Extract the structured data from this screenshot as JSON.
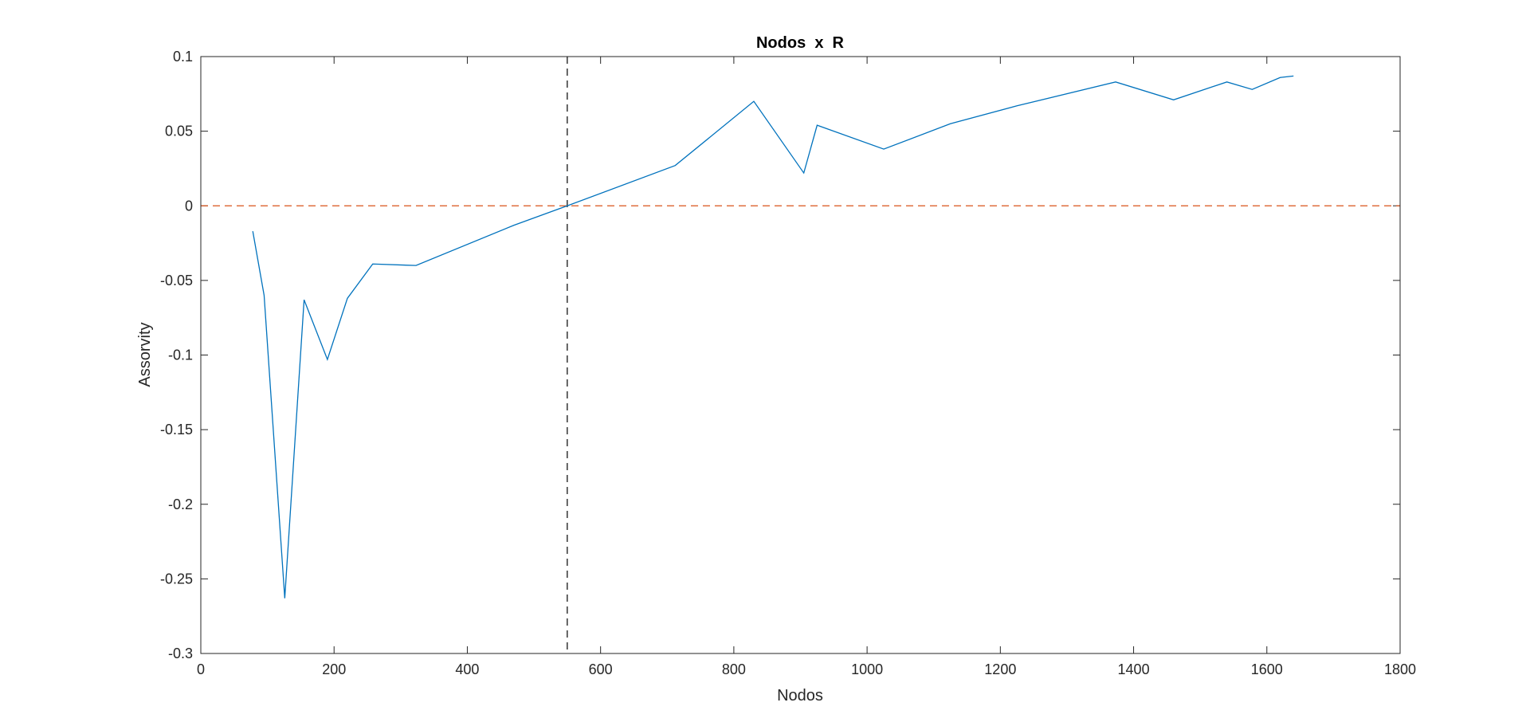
{
  "chart_data": {
    "type": "line",
    "title": "Nodos  x  R",
    "xlabel": "Nodos",
    "ylabel": "Assorvity",
    "xlim": [
      0,
      1800
    ],
    "ylim": [
      -0.3,
      0.1
    ],
    "xticks": [
      0,
      200,
      400,
      600,
      800,
      1000,
      1200,
      1400,
      1600,
      1800
    ],
    "xtick_labels": [
      "0",
      "200",
      "400",
      "600",
      "800",
      "1000",
      "1200",
      "1400",
      "1600",
      "1800"
    ],
    "yticks": [
      0.1,
      0.05,
      0,
      -0.05,
      -0.1,
      -0.15,
      -0.2,
      -0.25,
      -0.3
    ],
    "ytick_labels": [
      "0.1",
      "0.05",
      "0",
      "-0.05",
      "-0.1",
      "-0.15",
      "-0.2",
      "-0.25",
      "-0.3"
    ],
    "grid": false,
    "series": [
      {
        "color": "#0072BD",
        "x": [
          78,
          95,
          126,
          155,
          190,
          220,
          258,
          323,
          470,
          550,
          712,
          830,
          905,
          925,
          1025,
          1125,
          1225,
          1373,
          1460,
          1540,
          1578,
          1620,
          1640
        ],
        "y": [
          -0.017,
          -0.06,
          -0.263,
          -0.063,
          -0.103,
          -0.062,
          -0.039,
          -0.04,
          -0.013,
          0.0,
          0.027,
          0.07,
          0.022,
          0.054,
          0.038,
          0.055,
          0.067,
          0.083,
          0.071,
          0.083,
          0.078,
          0.086,
          0.087
        ]
      }
    ],
    "reference_lines": [
      {
        "orientation": "horizontal",
        "value": 0,
        "color": "#D95319",
        "style": "dashed"
      },
      {
        "orientation": "vertical",
        "value": 550,
        "color": "#000000",
        "style": "dashed"
      }
    ]
  }
}
